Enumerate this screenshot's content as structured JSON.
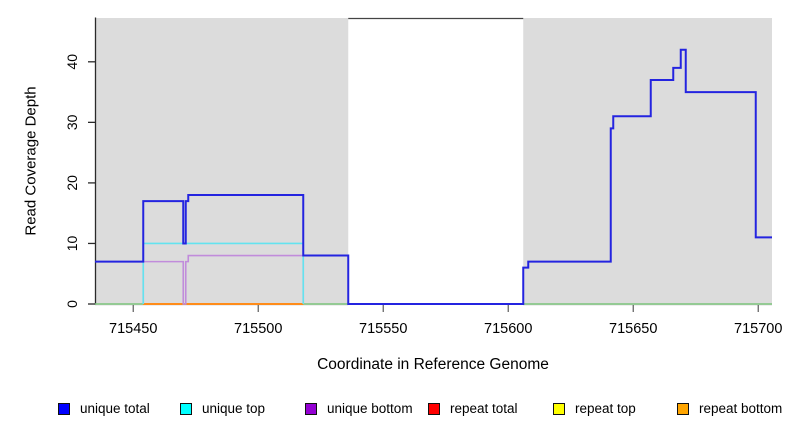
{
  "figure": {
    "xlabel": "Coordinate in Reference Genome",
    "ylabel": "Read Coverage Depth"
  },
  "legend": {
    "items": [
      {
        "label": "unique total",
        "color": "#0000FF"
      },
      {
        "label": "unique top",
        "color": "#00FFFF"
      },
      {
        "label": "unique bottom",
        "color": "#9400D3"
      },
      {
        "label": "repeat total",
        "color": "#FF0000"
      },
      {
        "label": "repeat top",
        "color": "#FFFF00"
      },
      {
        "label": "repeat bottom",
        "color": "#FFA500"
      }
    ]
  },
  "chart_data": {
    "type": "line",
    "step": true,
    "title": "",
    "xlabel": "Coordinate in Reference Genome",
    "ylabel": "Read Coverage Depth",
    "xlim": [
      715434.7,
      715705.5
    ],
    "ylim": [
      0,
      47.4
    ],
    "x_ticks": [
      715450,
      715500,
      715550,
      715600,
      715650,
      715700
    ],
    "y_ticks": [
      0,
      10,
      20,
      30,
      40
    ],
    "grid": false,
    "legend_position": "bottom",
    "plot_background": "#FFFFFF",
    "shaded_regions": [
      {
        "x1": 715434.7,
        "x2": 715536,
        "color": "#DCDCDC"
      },
      {
        "x1": 715606,
        "x2": 715705.5,
        "color": "#DCDCDC"
      }
    ],
    "series": [
      {
        "name": "zero baseline",
        "in_legend": false,
        "color": "#7CC47C",
        "line_color": "#7CC47C",
        "width": 1.4,
        "closed": false,
        "points": [
          [
            715434.7,
            0
          ],
          [
            715705.5,
            0
          ]
        ]
      },
      {
        "name": "repeat total",
        "in_legend": true,
        "color": "#FF0000",
        "line_color": "#E03030",
        "width": 1.4,
        "closed": true,
        "points": [
          [
            715454,
            0
          ],
          [
            715518,
            0
          ]
        ]
      },
      {
        "name": "repeat top",
        "in_legend": true,
        "color": "#FFFF00",
        "line_color": "#E8E838",
        "width": 1.4,
        "closed": true,
        "points": [
          [
            715454,
            0
          ],
          [
            715518,
            0
          ]
        ]
      },
      {
        "name": "repeat bottom",
        "in_legend": true,
        "color": "#FFA500",
        "line_color": "#FF8C1A",
        "width": 2,
        "closed": true,
        "points": [
          [
            715454,
            0
          ],
          [
            715518,
            0
          ]
        ]
      },
      {
        "name": "unique bottom",
        "in_legend": true,
        "color": "#9400D3",
        "line_color": "#C18CDB",
        "width": 1.6,
        "closed": true,
        "points": [
          [
            715454,
            7
          ],
          [
            715470,
            0
          ],
          [
            715471,
            7
          ],
          [
            715472,
            8
          ],
          [
            715518,
            0
          ]
        ]
      },
      {
        "name": "unique top",
        "in_legend": true,
        "color": "#00FFFF",
        "line_color": "#63E3EF",
        "width": 1.6,
        "closed": true,
        "points": [
          [
            715454,
            10
          ],
          [
            715518,
            0
          ]
        ]
      },
      {
        "name": "unique total",
        "in_legend": true,
        "color": "#0000FF",
        "line_color": "#2424E0",
        "width": 2,
        "closed": false,
        "points": [
          [
            715434.7,
            7
          ],
          [
            715454,
            17
          ],
          [
            715470,
            10
          ],
          [
            715471,
            17
          ],
          [
            715472,
            18
          ],
          [
            715518,
            8
          ],
          [
            715536,
            0
          ],
          [
            715606,
            6
          ],
          [
            715608,
            7
          ],
          [
            715641,
            29
          ],
          [
            715642,
            31
          ],
          [
            715657,
            37
          ],
          [
            715666,
            39
          ],
          [
            715669,
            42
          ],
          [
            715671,
            35
          ],
          [
            715699,
            11
          ],
          [
            715705.5,
            11
          ]
        ]
      }
    ]
  }
}
